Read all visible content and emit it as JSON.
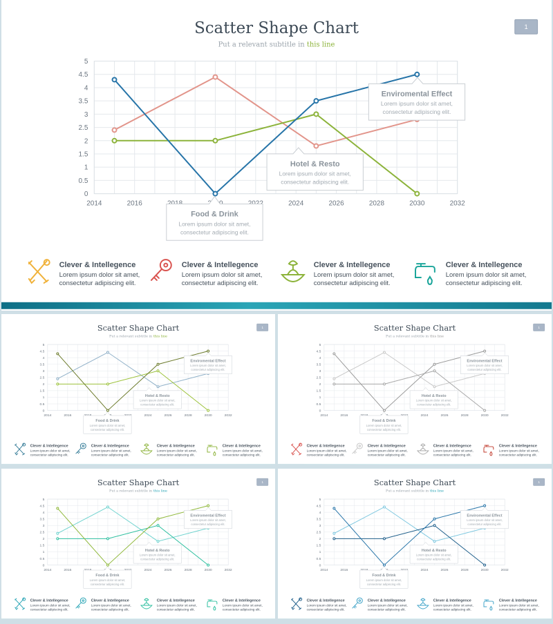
{
  "slide": {
    "title": "Scatter Shape Chart",
    "subtitle_prefix": "Put a relevant subtitle in ",
    "subtitle_highlight": "this line",
    "page_number": "1"
  },
  "chart_data": {
    "type": "line",
    "xlim": [
      2014,
      2032
    ],
    "ylim": [
      0,
      5
    ],
    "x_ticks": [
      "2014",
      "2016",
      "2018",
      "2020",
      "2022",
      "2024",
      "2026",
      "2028",
      "2030",
      "2032"
    ],
    "y_ticks": [
      "0",
      "0.5",
      "1",
      "1.5",
      "2",
      "2.5",
      "3",
      "3.5",
      "4",
      "4.5",
      "5"
    ],
    "grid": true,
    "series": [
      {
        "x": [
          2015,
          2020,
          2025,
          2030
        ],
        "y": [
          4.3,
          0,
          3.5,
          4.5
        ]
      },
      {
        "x": [
          2015,
          2020,
          2025,
          2030
        ],
        "y": [
          2.4,
          4.4,
          1.8,
          2.8
        ]
      },
      {
        "x": [
          2015,
          2020,
          2025,
          2030
        ],
        "y": [
          2.0,
          2.0,
          3.0,
          0
        ]
      }
    ],
    "annotations": [
      {
        "title": "Food & Drink",
        "line1": "Lorem ipsum dolor sit amet,",
        "line2": "consectetur adipiscing elit."
      },
      {
        "title": "Hotel & Resto",
        "line1": "Lorem ipsum dolor sit amet,",
        "line2": "consectetur adipiscing elit."
      },
      {
        "title": "Enviromental Effect",
        "line1": "Lorem ipsum dolor sit amet,",
        "line2": "consectetur adipiscing elit."
      }
    ]
  },
  "features": [
    {
      "title": "Clever & Intellegence",
      "desc": "Lorem ipsum dolor sit amet,\nconsectetur adipiscing elit.",
      "icon": "tools-icon"
    },
    {
      "title": "Clever & Intellegence",
      "desc": "Lorem ipsum dolor sit amet,\nconsectetur adipiscing elit.",
      "icon": "key-icon"
    },
    {
      "title": "Clever & Intellegence",
      "desc": "Lorem ipsum dolor sit amet,\nconsectetur adipiscing elit.",
      "icon": "juicer-icon"
    },
    {
      "title": "Clever & Intellegence",
      "desc": "Lorem ipsum dolor sit amet,\nconsectetur adipiscing elit.",
      "icon": "faucet-icon"
    }
  ],
  "themes": [
    {
      "series": [
        "#2674a8",
        "#e2948a",
        "#8cb33a"
      ],
      "icons": [
        "#f0b23b",
        "#d9534f",
        "#8cb33a",
        "#1aa59a"
      ],
      "accent": "#8cb33a"
    },
    {
      "series": [
        "#6b7a2a",
        "#8fb0c8",
        "#9cc23a"
      ],
      "icons": [
        "#3a7f9a",
        "#3a7f9a",
        "#8cb33a",
        "#8cb33a"
      ],
      "accent": "#8cb33a"
    },
    {
      "series": [
        "#9a9a9a",
        "#c8c8c8",
        "#a8a8a8"
      ],
      "icons": [
        "#d9534f",
        "#c8c8c8",
        "#a8a8a8",
        "#c0392b"
      ],
      "accent": "#9a9a9a"
    },
    {
      "series": [
        "#8fb83a",
        "#6fd3cf",
        "#2cbf9f"
      ],
      "icons": [
        "#2aa5b6",
        "#2aa5b6",
        "#2cbf9f",
        "#2cbf9f"
      ],
      "accent": "#2aa5b6"
    },
    {
      "series": [
        "#2674a8",
        "#7fc8e0",
        "#1f5f8b"
      ],
      "icons": [
        "#1f5f8b",
        "#3fa3c8",
        "#3fa3c8",
        "#3fa3c8"
      ],
      "accent": "#2aa5b6"
    }
  ]
}
